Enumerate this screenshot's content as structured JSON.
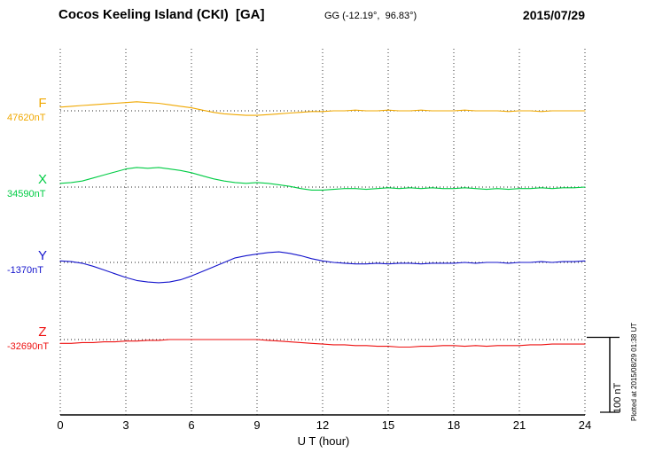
{
  "header": {
    "station": "Cocos Keeling Island (CKI)  [GA]",
    "coords": "GG (-12.19°,  96.83°)",
    "date": "2015/07/29"
  },
  "x_axis": {
    "ticks": [
      "0",
      "3",
      "6",
      "9",
      "12",
      "15",
      "18",
      "21",
      "24"
    ],
    "label": "U T (hour)"
  },
  "scale_bar": {
    "label": "100 nT"
  },
  "side_note": "Plotted at 2015/08/29 01:38 UT",
  "chart_data": {
    "type": "line",
    "title": "Cocos Keeling Island (CKI) [GA] magnetogram 2015/07/29",
    "xlabel": "U T (hour)",
    "x_range": [
      0,
      24
    ],
    "x_tick_step": 3,
    "scale_nT": 100,
    "grid": "dotted vertical every 3h, dotted horizontal baseline per component",
    "x": [
      0,
      0.5,
      1,
      1.5,
      2,
      2.5,
      3,
      3.5,
      4,
      4.5,
      5,
      5.5,
      6,
      6.5,
      7,
      7.5,
      8,
      8.5,
      9,
      9.5,
      10,
      10.5,
      11,
      11.5,
      12,
      12.5,
      13,
      13.5,
      14,
      14.5,
      15,
      15.5,
      16,
      16.5,
      17,
      17.5,
      18,
      18.5,
      19,
      19.5,
      20,
      20.5,
      21,
      21.5,
      22,
      22.5,
      23,
      23.5,
      24
    ],
    "series": [
      {
        "name": "F",
        "color": "#f0a800",
        "baseline_nT": 47620,
        "baseline_label": "47620nT",
        "offsets_nT": [
          5,
          6,
          7,
          8,
          9,
          10,
          11,
          12,
          11,
          10,
          8,
          6,
          4,
          1,
          -2,
          -4,
          -5,
          -6,
          -6,
          -5,
          -4,
          -3,
          -2,
          -1,
          -1,
          0,
          0,
          1,
          0,
          0,
          1,
          0,
          0,
          1,
          0,
          0,
          0,
          1,
          0,
          0,
          0,
          -1,
          0,
          0,
          -1,
          0,
          0,
          0,
          0
        ]
      },
      {
        "name": "X",
        "color": "#00cc44",
        "baseline_nT": 34590,
        "baseline_label": "34590nT",
        "offsets_nT": [
          5,
          6,
          8,
          12,
          16,
          20,
          24,
          26,
          25,
          26,
          24,
          22,
          19,
          15,
          11,
          8,
          6,
          5,
          6,
          5,
          3,
          1,
          -2,
          -4,
          -4,
          -3,
          -2,
          -2,
          -3,
          -2,
          -1,
          -2,
          -1,
          -2,
          -1,
          -2,
          -2,
          -1,
          -2,
          -3,
          -2,
          -3,
          -2,
          -2,
          -1,
          -2,
          -1,
          -1,
          0
        ]
      },
      {
        "name": "Y",
        "color": "#1414cc",
        "baseline_nT": -1370,
        "baseline_label": "-1370nT",
        "offsets_nT": [
          2,
          1,
          -1,
          -5,
          -10,
          -15,
          -20,
          -24,
          -26,
          -27,
          -26,
          -23,
          -18,
          -12,
          -6,
          0,
          6,
          9,
          11,
          13,
          14,
          12,
          9,
          5,
          2,
          0,
          -1,
          -2,
          -2,
          -1,
          -2,
          -1,
          -1,
          -2,
          -1,
          -1,
          -1,
          0,
          -1,
          0,
          0,
          -1,
          0,
          0,
          1,
          0,
          1,
          1,
          2
        ]
      },
      {
        "name": "Z",
        "color": "#ee1111",
        "baseline_nT": -32690,
        "baseline_label": "-32690nT",
        "offsets_nT": [
          -5,
          -5,
          -4,
          -4,
          -3,
          -3,
          -2,
          -2,
          -1,
          -1,
          0,
          0,
          0,
          0,
          0,
          0,
          0,
          0,
          0,
          -1,
          -2,
          -3,
          -4,
          -5,
          -6,
          -7,
          -7,
          -8,
          -8,
          -9,
          -9,
          -10,
          -10,
          -9,
          -9,
          -8,
          -8,
          -9,
          -8,
          -9,
          -8,
          -8,
          -8,
          -7,
          -7,
          -6,
          -6,
          -6,
          -6
        ]
      }
    ]
  }
}
